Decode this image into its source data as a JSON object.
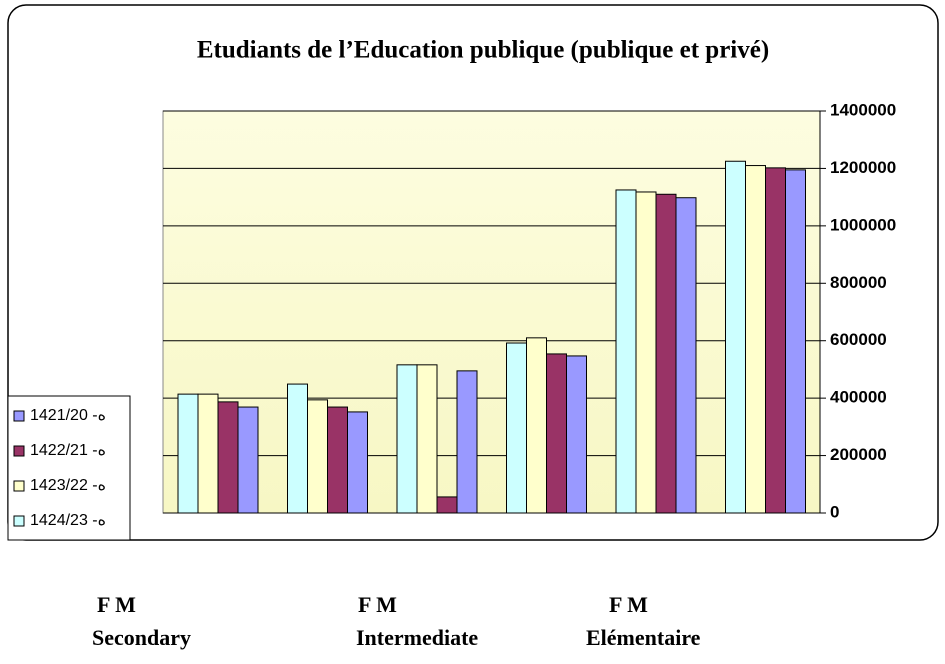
{
  "chart_data": {
    "type": "bar",
    "title": "Etudiants de l’Education publique (publique et privé)",
    "categories": [
      null,
      null,
      null,
      null,
      null,
      null
    ],
    "series": [
      {
        "name": "ه- 1421/20",
        "color": "#9999ff",
        "values": [
          369000,
          352000,
          495000,
          547000,
          1098000,
          1195000
        ]
      },
      {
        "name": "ه- 1422/21",
        "color": "#993366",
        "values": [
          387000,
          369000,
          56000,
          554000,
          1110000,
          1202000
        ]
      },
      {
        "name": "ه- 1423/22",
        "color": "#ffffcc",
        "values": [
          414000,
          394000,
          516000,
          610000,
          1118000,
          1210000
        ]
      },
      {
        "name": "ه- 1424/23",
        "color": "#ccffff",
        "values": [
          414000,
          449000,
          516000,
          592000,
          1125000,
          1225000
        ]
      }
    ],
    "ylim": [
      0,
      1400000
    ],
    "yticks": [
      0,
      200000,
      400000,
      600000,
      800000,
      1000000,
      1200000,
      1400000
    ],
    "grid": true,
    "legend": "bottom-left",
    "annotations": [
      "F   M",
      "F   M",
      "F    M",
      "Secondary",
      "Intermediate",
      "Elémentaire"
    ]
  }
}
